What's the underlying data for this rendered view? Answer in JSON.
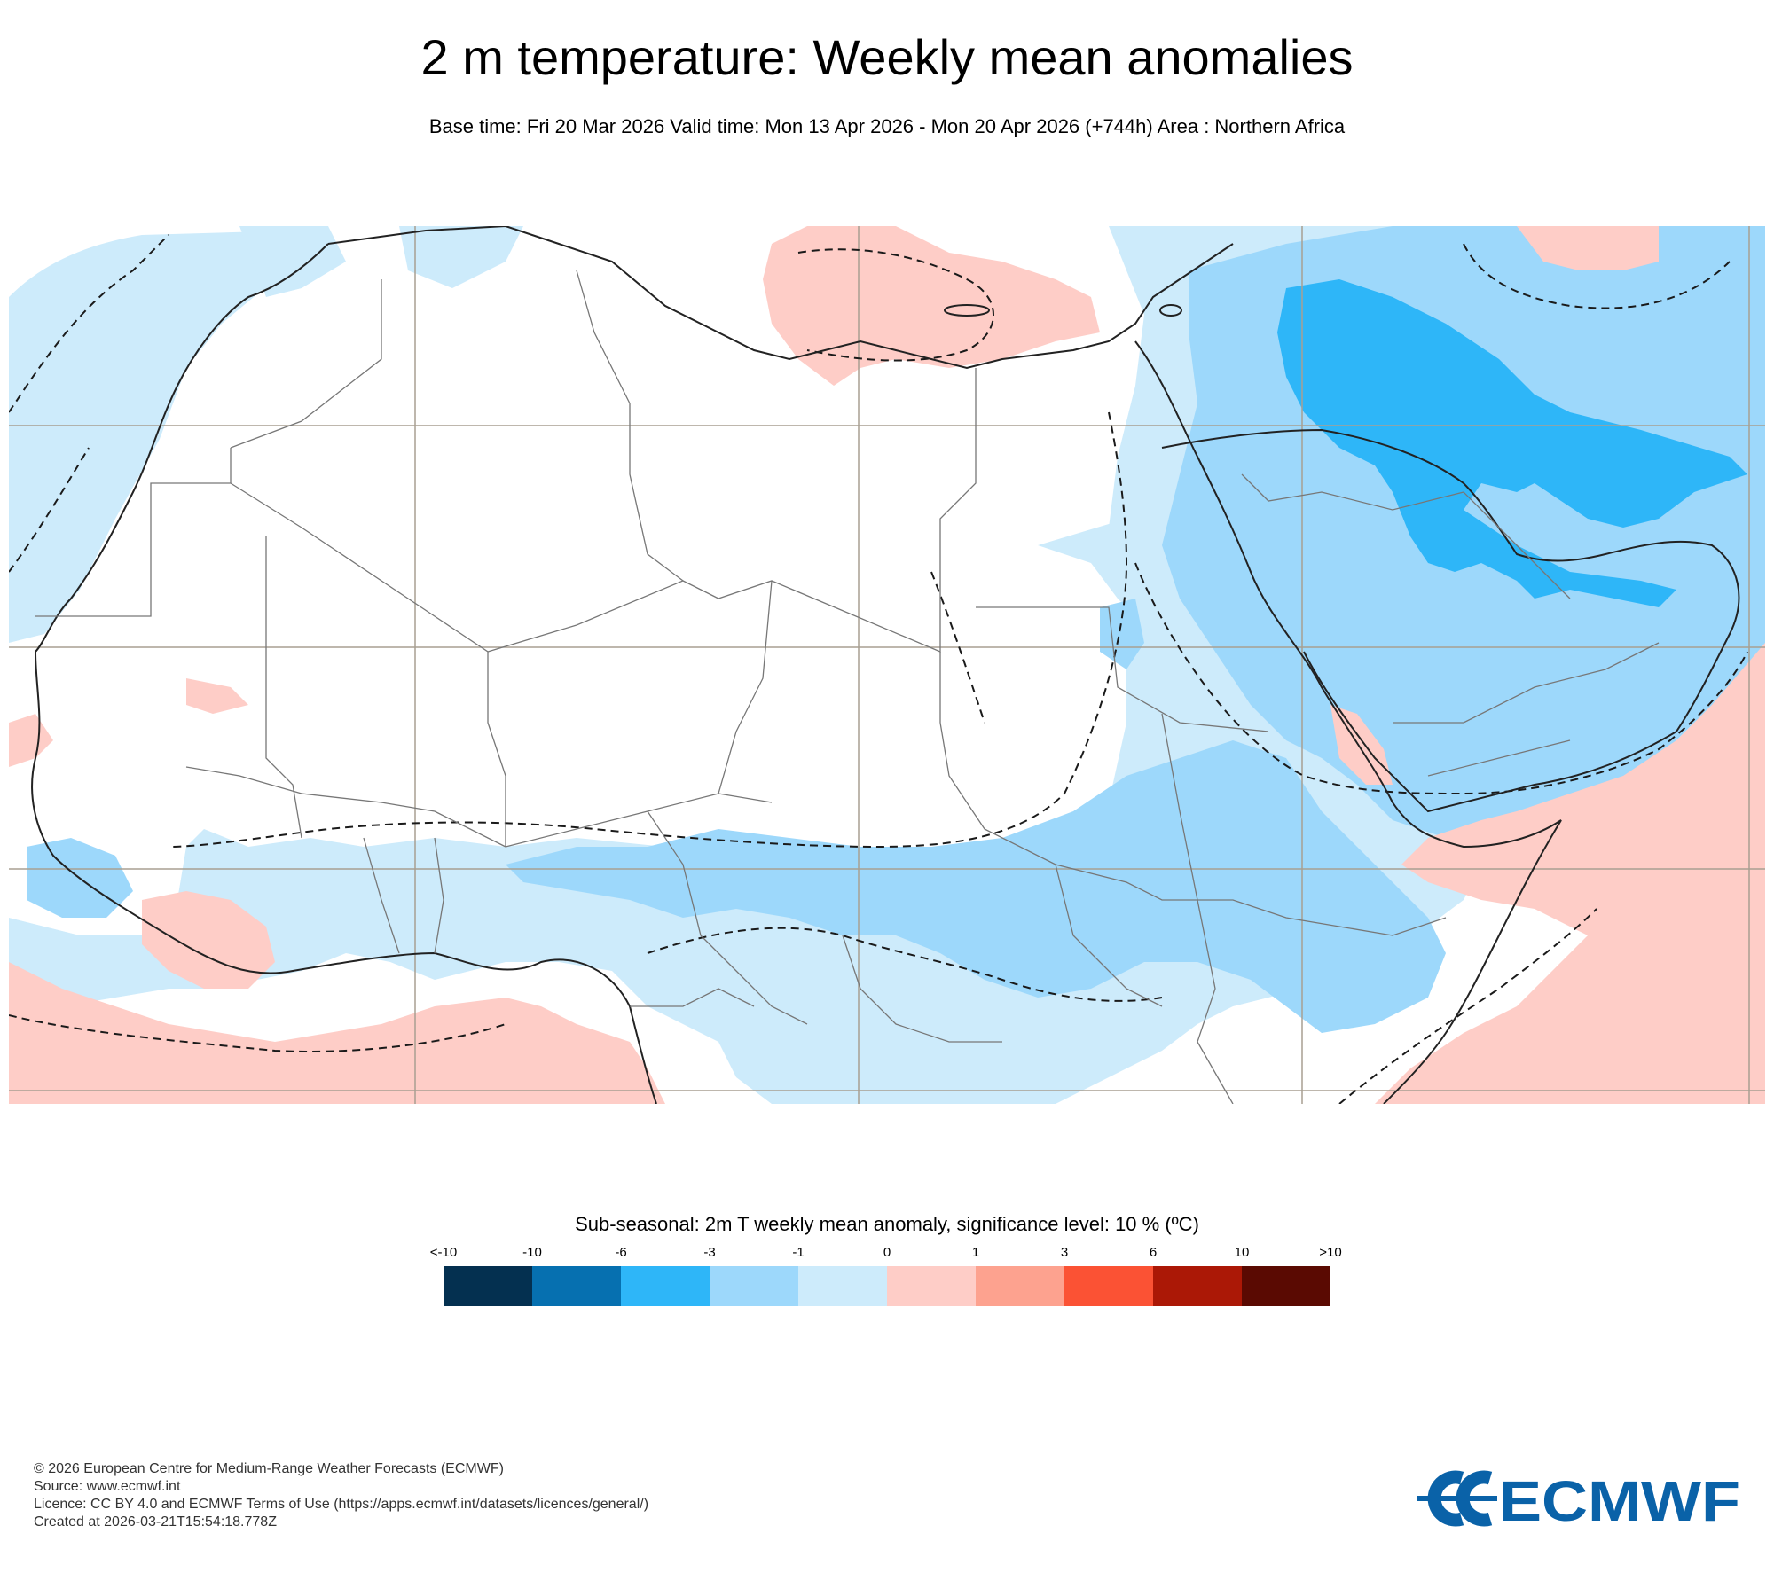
{
  "title": "2 m temperature: Weekly mean anomalies",
  "subtitle": "Base time: Fri 20 Mar 2026 Valid time: Mon 13 Apr 2026 - Mon 20 Apr 2026 (+744h) Area : Northern Africa",
  "legend": {
    "title": "Sub-seasonal: 2m T weekly mean anomaly, significance level: 10 % (ºC)",
    "ticks": [
      "<-10",
      "-10",
      "-6",
      "-3",
      "-1",
      "0",
      "1",
      "3",
      "6",
      "10",
      ">10"
    ],
    "colors": [
      "#043050",
      "#0670b0",
      "#2eb6f8",
      "#9dd8fb",
      "#cdebfb",
      "#fecdc7",
      "#fda28f",
      "#fb5234",
      "#ab1806",
      "#5a0a02"
    ]
  },
  "palette": {
    "land": "#ffffff",
    "coast": "#222222",
    "border": "#777777",
    "grid": "#a89f92",
    "significance_contour": "#1a1a1a"
  },
  "footer": {
    "copyright": "© 2026 European Centre for Medium-Range Weather Forecasts (ECMWF)",
    "source": "Source: www.ecmwf.int",
    "licence": "Licence: CC BY 4.0 and ECMWF Terms of Use (https://apps.ecmwf.int/datasets/licences/general/)",
    "created": "Created at 2026-03-21T15:54:18.778Z"
  },
  "logo": {
    "text": "ECMWF",
    "color": "#0a62a8"
  }
}
